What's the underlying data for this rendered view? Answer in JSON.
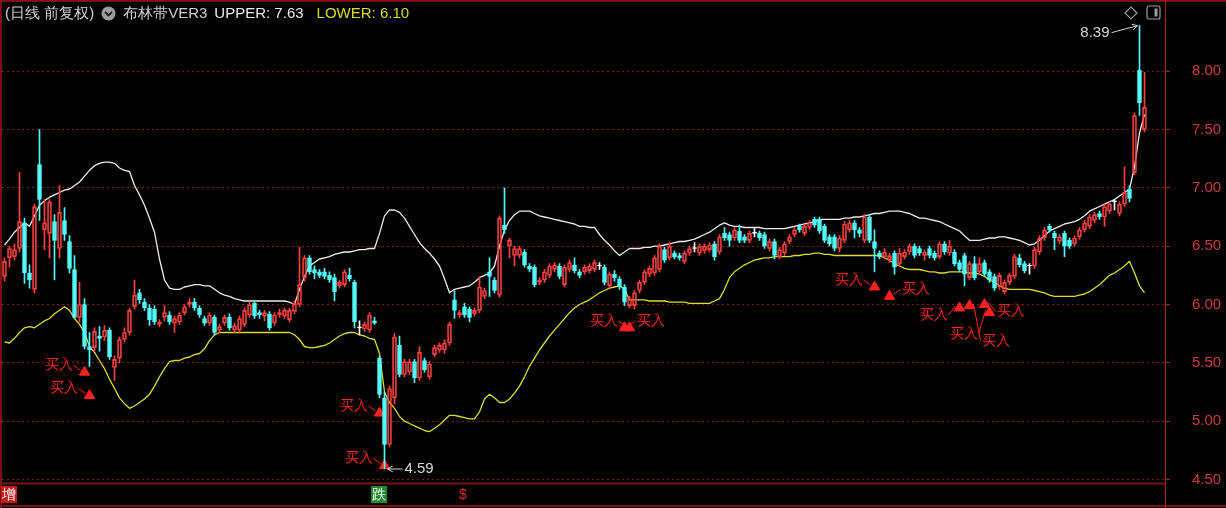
{
  "chart_data": {
    "type": "candlestick",
    "title": "(日线 前复权)",
    "subtitle": "布林带VER3",
    "categories": [
      null,
      null,
      null,
      null,
      null,
      null,
      null,
      null,
      null,
      null,
      null,
      null,
      null,
      null,
      null,
      null,
      null,
      null,
      null,
      null,
      null,
      null,
      null,
      null,
      null,
      null,
      null,
      null,
      null,
      null,
      null,
      null,
      null,
      null,
      null,
      null,
      null,
      null,
      null,
      null,
      null,
      null,
      null,
      null,
      null,
      null,
      null,
      null,
      null,
      null,
      null,
      null,
      null,
      null,
      null,
      null,
      null,
      null,
      null,
      null,
      null,
      null,
      null,
      null,
      null,
      null,
      null,
      null,
      null,
      null,
      null,
      null,
      null,
      null,
      null,
      null,
      null,
      null,
      null,
      null,
      null,
      null,
      null,
      null,
      null,
      null,
      null,
      null,
      null,
      null,
      null,
      null,
      null,
      null,
      null,
      null,
      null,
      null,
      null,
      null,
      null,
      null,
      null,
      null,
      null,
      null,
      null,
      null,
      null,
      null,
      null,
      null,
      null,
      null,
      null,
      null,
      null,
      null,
      null,
      null,
      null,
      null,
      null,
      null,
      null,
      null,
      null,
      null,
      null,
      null,
      null,
      null,
      null,
      null,
      null,
      null,
      null,
      null,
      null,
      null,
      null,
      null,
      null,
      null,
      null,
      null,
      null,
      null,
      null,
      null,
      null,
      null,
      null,
      null,
      null,
      null,
      null,
      null,
      null,
      null,
      null,
      null,
      null,
      null,
      null,
      null,
      null,
      null,
      null,
      null,
      null,
      null,
      null,
      null,
      null,
      null,
      null,
      null,
      null,
      null,
      null,
      null,
      null,
      null,
      null,
      null,
      null,
      null,
      null,
      null,
      null,
      null,
      null,
      null,
      null,
      null,
      null,
      null,
      null,
      null,
      null,
      null,
      null,
      null,
      null,
      null,
      null,
      null,
      null,
      null,
      null,
      null,
      null,
      null,
      null,
      null,
      null,
      null,
      null,
      null,
      null,
      null,
      null,
      null,
      null,
      null,
      null,
      null,
      null
    ],
    "ohlc": [
      [
        6.24,
        6.4,
        6.2,
        6.37
      ],
      [
        6.4,
        6.5,
        6.32,
        6.48
      ],
      [
        6.41,
        6.52,
        6.38,
        6.47
      ],
      [
        6.48,
        7.13,
        6.45,
        6.71
      ],
      [
        6.7,
        6.74,
        6.18,
        6.27
      ],
      [
        6.27,
        6.34,
        6.14,
        6.21
      ],
      [
        6.13,
        6.86,
        6.1,
        6.84
      ],
      [
        7.2,
        7.5,
        6.72,
        6.9
      ],
      [
        6.64,
        6.9,
        6.47,
        6.7
      ],
      [
        6.61,
        6.9,
        6.4,
        6.88
      ],
      [
        6.71,
        6.77,
        6.21,
        6.55
      ],
      [
        6.48,
        7.02,
        6.4,
        6.79
      ],
      [
        6.72,
        6.83,
        6.55,
        6.6
      ],
      [
        6.54,
        6.59,
        6.27,
        6.31
      ],
      [
        6.3,
        6.42,
        5.88,
        5.89
      ],
      [
        5.89,
        6.19,
        5.85,
        6.0
      ],
      [
        6.0,
        6.05,
        5.62,
        5.64
      ],
      [
        5.64,
        5.76,
        5.47,
        5.61
      ],
      [
        5.63,
        5.8,
        5.6,
        5.77
      ],
      [
        5.73,
        5.81,
        5.6,
        5.71
      ],
      [
        5.72,
        5.82,
        5.69,
        5.78
      ],
      [
        5.78,
        5.8,
        5.53,
        5.55
      ],
      [
        5.46,
        5.56,
        5.35,
        5.53
      ],
      [
        5.54,
        5.72,
        5.5,
        5.7
      ],
      [
        5.7,
        5.8,
        5.68,
        5.76
      ],
      [
        5.76,
        5.97,
        5.74,
        5.95
      ],
      [
        5.98,
        6.21,
        5.96,
        6.08
      ],
      [
        6.1,
        6.13,
        6.01,
        6.04
      ],
      [
        6.02,
        6.05,
        5.95,
        5.97
      ],
      [
        5.97,
        6.0,
        5.82,
        5.87
      ],
      [
        5.96,
        5.99,
        5.83,
        5.85
      ],
      [
        5.83,
        5.87,
        5.81,
        5.85
      ],
      [
        5.89,
        5.99,
        5.86,
        5.93
      ],
      [
        5.91,
        5.94,
        5.83,
        5.85
      ],
      [
        5.84,
        5.9,
        5.76,
        5.88
      ],
      [
        5.85,
        5.93,
        5.83,
        5.91
      ],
      [
        5.93,
        6.0,
        5.91,
        5.98
      ],
      [
        6.0,
        6.05,
        5.98,
        6.02
      ],
      [
        6.02,
        6.05,
        5.95,
        5.97
      ],
      [
        5.97,
        5.99,
        5.89,
        5.91
      ],
      [
        5.88,
        5.9,
        5.82,
        5.84
      ],
      [
        5.84,
        5.93,
        5.82,
        5.91
      ],
      [
        5.89,
        5.91,
        5.74,
        5.76
      ],
      [
        5.78,
        5.83,
        5.76,
        5.81
      ],
      [
        5.84,
        5.91,
        5.82,
        5.89
      ],
      [
        5.89,
        5.92,
        5.78,
        5.8
      ],
      [
        5.78,
        5.84,
        5.76,
        5.82
      ],
      [
        5.78,
        5.9,
        5.76,
        5.88
      ],
      [
        5.83,
        5.97,
        5.81,
        5.95
      ],
      [
        5.91,
        6.02,
        5.89,
        6.0
      ],
      [
        6.01,
        6.03,
        5.88,
        5.9
      ],
      [
        5.93,
        5.95,
        5.88,
        5.91
      ],
      [
        5.9,
        5.95,
        5.86,
        5.93
      ],
      [
        5.92,
        5.94,
        5.78,
        5.8
      ],
      [
        5.84,
        5.93,
        5.82,
        5.91
      ],
      [
        5.91,
        5.96,
        5.89,
        5.93
      ],
      [
        5.9,
        5.97,
        5.88,
        5.95
      ],
      [
        5.87,
        5.97,
        5.85,
        5.95
      ],
      [
        5.94,
        6.03,
        5.92,
        6.01
      ],
      [
        6.0,
        6.49,
        5.98,
        6.17
      ],
      [
        6.23,
        6.42,
        6.2,
        6.4
      ],
      [
        6.4,
        6.42,
        6.26,
        6.28
      ],
      [
        6.3,
        6.33,
        6.22,
        6.27
      ],
      [
        6.28,
        6.3,
        6.23,
        6.25
      ],
      [
        6.28,
        6.31,
        6.22,
        6.24
      ],
      [
        6.25,
        6.28,
        6.19,
        6.21
      ],
      [
        6.23,
        6.26,
        6.03,
        6.11
      ],
      [
        6.16,
        6.21,
        6.14,
        6.19
      ],
      [
        6.17,
        6.3,
        6.15,
        6.28
      ],
      [
        6.25,
        6.31,
        6.2,
        6.22
      ],
      [
        6.19,
        6.21,
        5.8,
        5.85
      ],
      [
        5.8,
        5.86,
        5.74,
        5.8
      ],
      [
        5.79,
        5.85,
        5.77,
        5.83
      ],
      [
        5.78,
        5.93,
        5.76,
        5.91
      ],
      [
        5.86,
        5.89,
        5.83,
        5.84
      ],
      [
        5.54,
        5.56,
        5.2,
        5.23
      ],
      [
        5.2,
        5.25,
        4.59,
        4.8
      ],
      [
        4.8,
        5.3,
        4.78,
        5.28
      ],
      [
        5.2,
        5.75,
        5.15,
        5.72
      ],
      [
        5.65,
        5.73,
        5.38,
        5.4
      ],
      [
        5.4,
        5.53,
        5.38,
        5.51
      ],
      [
        5.42,
        5.53,
        5.4,
        5.51
      ],
      [
        5.51,
        5.53,
        5.33,
        5.37
      ],
      [
        5.37,
        5.64,
        5.35,
        5.59
      ],
      [
        5.52,
        5.54,
        5.42,
        5.44
      ],
      [
        5.38,
        5.51,
        5.36,
        5.49
      ],
      [
        5.57,
        5.65,
        5.55,
        5.63
      ],
      [
        5.61,
        5.67,
        5.59,
        5.65
      ],
      [
        5.61,
        5.7,
        5.58,
        5.67
      ],
      [
        5.67,
        5.85,
        5.65,
        5.83
      ],
      [
        6.04,
        6.12,
        5.88,
        5.95
      ],
      [
        5.91,
        5.95,
        5.89,
        5.93
      ],
      [
        5.98,
        6.01,
        5.89,
        5.91
      ],
      [
        5.96,
        5.98,
        5.85,
        5.89
      ],
      [
        5.92,
        5.97,
        5.9,
        5.95
      ],
      [
        5.95,
        6.24,
        5.93,
        6.15
      ],
      [
        6.07,
        6.14,
        6.05,
        6.12
      ],
      [
        6.28,
        6.4,
        6.07,
        6.24
      ],
      [
        6.21,
        6.23,
        6.1,
        6.12
      ],
      [
        6.08,
        6.76,
        6.06,
        6.74
      ],
      [
        6.68,
        7.0,
        6.61,
        6.64
      ],
      [
        6.5,
        6.57,
        6.4,
        6.55
      ],
      [
        6.42,
        6.5,
        6.33,
        6.48
      ],
      [
        6.42,
        6.5,
        6.4,
        6.48
      ],
      [
        6.45,
        6.47,
        6.32,
        6.34
      ],
      [
        6.33,
        6.35,
        6.28,
        6.3
      ],
      [
        6.32,
        6.34,
        6.15,
        6.17
      ],
      [
        6.19,
        6.23,
        6.17,
        6.21
      ],
      [
        6.21,
        6.3,
        6.19,
        6.28
      ],
      [
        6.25,
        6.35,
        6.23,
        6.33
      ],
      [
        6.3,
        6.36,
        6.28,
        6.34
      ],
      [
        6.33,
        6.35,
        6.22,
        6.24
      ],
      [
        6.17,
        6.34,
        6.15,
        6.32
      ],
      [
        6.3,
        6.38,
        6.28,
        6.36
      ],
      [
        6.34,
        6.4,
        6.27,
        6.29
      ],
      [
        6.28,
        6.3,
        6.23,
        6.25
      ],
      [
        6.28,
        6.34,
        6.26,
        6.32
      ],
      [
        6.29,
        6.35,
        6.27,
        6.33
      ],
      [
        6.3,
        6.38,
        6.28,
        6.36
      ],
      [
        6.33,
        6.36,
        6.3,
        6.33
      ],
      [
        6.32,
        6.34,
        6.17,
        6.19
      ],
      [
        6.16,
        6.28,
        6.14,
        6.26
      ],
      [
        6.26,
        6.29,
        6.2,
        6.23
      ],
      [
        6.22,
        6.24,
        6.13,
        6.15
      ],
      [
        6.15,
        6.17,
        5.99,
        6.02
      ],
      [
        5.99,
        6.07,
        5.97,
        6.05
      ],
      [
        5.99,
        6.12,
        5.96,
        6.1
      ],
      [
        6.12,
        6.21,
        6.1,
        6.19
      ],
      [
        6.19,
        6.3,
        6.17,
        6.28
      ],
      [
        6.26,
        6.33,
        6.24,
        6.31
      ],
      [
        6.27,
        6.42,
        6.25,
        6.4
      ],
      [
        6.3,
        6.52,
        6.28,
        6.5
      ],
      [
        6.47,
        6.49,
        6.36,
        6.38
      ],
      [
        6.4,
        6.53,
        6.38,
        6.5
      ],
      [
        6.44,
        6.46,
        6.39,
        6.41
      ],
      [
        6.42,
        6.44,
        6.38,
        6.4
      ],
      [
        6.37,
        6.46,
        6.35,
        6.44
      ],
      [
        6.44,
        6.5,
        6.42,
        6.48
      ],
      [
        6.48,
        6.53,
        6.45,
        6.48
      ],
      [
        6.44,
        6.52,
        6.42,
        6.5
      ],
      [
        6.46,
        6.52,
        6.44,
        6.5
      ],
      [
        6.47,
        6.53,
        6.45,
        6.51
      ],
      [
        6.52,
        6.54,
        6.38,
        6.41
      ],
      [
        6.45,
        6.6,
        6.43,
        6.58
      ],
      [
        6.61,
        6.66,
        6.55,
        6.57
      ],
      [
        6.6,
        6.62,
        6.5,
        6.55
      ],
      [
        6.57,
        6.66,
        6.55,
        6.64
      ],
      [
        6.63,
        6.68,
        6.53,
        6.55
      ],
      [
        6.58,
        6.6,
        6.53,
        6.55
      ],
      [
        6.55,
        6.63,
        6.53,
        6.61
      ],
      [
        6.61,
        6.65,
        6.58,
        6.61
      ],
      [
        6.61,
        6.63,
        6.55,
        6.57
      ],
      [
        6.6,
        6.62,
        6.48,
        6.5
      ],
      [
        6.48,
        6.56,
        6.46,
        6.54
      ],
      [
        6.54,
        6.56,
        6.39,
        6.42
      ],
      [
        6.41,
        6.49,
        6.39,
        6.47
      ],
      [
        6.44,
        6.54,
        6.42,
        6.52
      ],
      [
        6.54,
        6.6,
        6.52,
        6.58
      ],
      [
        6.6,
        6.66,
        6.58,
        6.64
      ],
      [
        6.67,
        6.69,
        6.62,
        6.64
      ],
      [
        6.61,
        6.69,
        6.59,
        6.67
      ],
      [
        6.66,
        6.72,
        6.64,
        6.7
      ],
      [
        6.73,
        6.75,
        6.66,
        6.68
      ],
      [
        6.73,
        6.75,
        6.61,
        6.63
      ],
      [
        6.67,
        6.69,
        6.53,
        6.55
      ],
      [
        6.58,
        6.6,
        6.5,
        6.52
      ],
      [
        6.58,
        6.6,
        6.46,
        6.48
      ],
      [
        6.48,
        6.59,
        6.45,
        6.57
      ],
      [
        6.55,
        6.71,
        6.53,
        6.69
      ],
      [
        6.64,
        6.72,
        6.62,
        6.7
      ],
      [
        6.7,
        6.72,
        6.57,
        6.64
      ],
      [
        6.64,
        6.66,
        6.58,
        6.61
      ],
      [
        6.55,
        6.77,
        6.53,
        6.75
      ],
      [
        6.75,
        6.77,
        6.53,
        6.55
      ],
      [
        6.54,
        6.64,
        6.28,
        6.48
      ],
      [
        6.44,
        6.46,
        6.39,
        6.41
      ],
      [
        6.41,
        6.48,
        6.39,
        6.45
      ],
      [
        6.38,
        6.44,
        6.36,
        6.42
      ],
      [
        6.44,
        6.46,
        6.26,
        6.32
      ],
      [
        6.35,
        6.48,
        6.33,
        6.44
      ],
      [
        6.41,
        6.47,
        6.39,
        6.45
      ],
      [
        6.45,
        6.52,
        6.43,
        6.5
      ],
      [
        6.5,
        6.52,
        6.4,
        6.42
      ],
      [
        6.48,
        6.5,
        6.42,
        6.44
      ],
      [
        6.42,
        6.47,
        6.38,
        6.45
      ],
      [
        6.48,
        6.5,
        6.4,
        6.42
      ],
      [
        6.44,
        6.46,
        6.38,
        6.4
      ],
      [
        6.41,
        6.54,
        6.39,
        6.52
      ],
      [
        6.52,
        6.54,
        6.43,
        6.45
      ],
      [
        6.44,
        6.55,
        6.42,
        6.5
      ],
      [
        6.45,
        6.47,
        6.33,
        6.35
      ],
      [
        6.36,
        6.38,
        6.28,
        6.3
      ],
      [
        6.42,
        6.44,
        6.16,
        6.26
      ],
      [
        6.23,
        6.37,
        6.21,
        6.35
      ],
      [
        6.35,
        6.41,
        6.21,
        6.23
      ],
      [
        6.28,
        6.4,
        6.26,
        6.35
      ],
      [
        6.36,
        6.38,
        6.24,
        6.26
      ],
      [
        6.28,
        6.3,
        6.19,
        6.21
      ],
      [
        6.24,
        6.26,
        6.12,
        6.14
      ],
      [
        6.15,
        6.27,
        6.13,
        6.25
      ],
      [
        6.11,
        6.21,
        6.09,
        6.19
      ],
      [
        6.19,
        6.27,
        6.17,
        6.25
      ],
      [
        6.24,
        6.43,
        6.22,
        6.41
      ],
      [
        6.4,
        6.43,
        6.32,
        6.34
      ],
      [
        6.35,
        6.37,
        6.27,
        6.29
      ],
      [
        6.33,
        6.35,
        6.26,
        6.33
      ],
      [
        6.33,
        6.49,
        6.31,
        6.47
      ],
      [
        6.45,
        6.59,
        6.43,
        6.57
      ],
      [
        6.57,
        6.66,
        6.55,
        6.64
      ],
      [
        6.67,
        6.69,
        6.62,
        6.64
      ],
      [
        6.61,
        6.63,
        6.47,
        6.57
      ],
      [
        6.54,
        6.6,
        6.52,
        6.58
      ],
      [
        6.61,
        6.63,
        6.41,
        6.5
      ],
      [
        6.55,
        6.57,
        6.48,
        6.5
      ],
      [
        6.52,
        6.59,
        6.5,
        6.57
      ],
      [
        6.58,
        6.66,
        6.56,
        6.64
      ],
      [
        6.64,
        6.72,
        6.62,
        6.7
      ],
      [
        6.67,
        6.77,
        6.65,
        6.75
      ],
      [
        6.72,
        6.79,
        6.7,
        6.77
      ],
      [
        6.78,
        6.8,
        6.73,
        6.75
      ],
      [
        6.75,
        6.86,
        6.67,
        6.84
      ],
      [
        6.8,
        6.88,
        6.78,
        6.86
      ],
      [
        6.88,
        6.9,
        6.81,
        6.88
      ],
      [
        6.78,
        6.88,
        6.76,
        6.86
      ],
      [
        6.86,
        7.18,
        6.84,
        6.96
      ],
      [
        6.99,
        7.02,
        6.88,
        6.91
      ],
      [
        7.13,
        7.64,
        7.11,
        7.62
      ],
      [
        8.01,
        8.39,
        7.62,
        7.73
      ],
      [
        7.5,
        7.99,
        7.48,
        7.69
      ]
    ],
    "colors": [
      "#ff4040",
      "#ff4040",
      "#ff4040",
      "#ff4040",
      "#54fcfc",
      "#54fcfc",
      "#ff4040",
      "#54fcfc",
      "#ff4040",
      "#ff4040",
      "#54fcfc",
      "#ff4040",
      "#54fcfc",
      "#54fcfc",
      "#54fcfc",
      "#ff4040",
      "#54fcfc",
      "#54fcfc",
      "#ff4040",
      "#54fcfc",
      "#ff4040",
      "#54fcfc",
      "#ff4040",
      "#ff4040",
      "#ff4040",
      "#ff4040",
      "#ff4040",
      "#54fcfc",
      "#54fcfc",
      "#54fcfc",
      "#54fcfc",
      "#ff4040",
      "#ff4040",
      "#54fcfc",
      "#ff4040",
      "#ff4040",
      "#ff4040",
      "#ff4040",
      "#54fcfc",
      "#54fcfc",
      "#54fcfc",
      "#ff4040",
      "#54fcfc",
      "#ff4040",
      "#ff4040",
      "#54fcfc",
      "#ff4040",
      "#ff4040",
      "#ff4040",
      "#ff4040",
      "#54fcfc",
      "#54fcfc",
      "#ff4040",
      "#54fcfc",
      "#ff4040",
      "#ff4040",
      "#ff4040",
      "#ff4040",
      "#ff4040",
      "#ff4040",
      "#ff4040",
      "#54fcfc",
      "#54fcfc",
      "#54fcfc",
      "#54fcfc",
      "#54fcfc",
      "#54fcfc",
      "#ff4040",
      "#ff4040",
      "#54fcfc",
      "#54fcfc",
      "#ffffff",
      "#ff4040",
      "#ff4040",
      "#54fcfc",
      "#54fcfc",
      "#54fcfc",
      "#ff4040",
      "#ff4040",
      "#54fcfc",
      "#ff4040",
      "#ff4040",
      "#54fcfc",
      "#ff4040",
      "#54fcfc",
      "#ff4040",
      "#ff4040",
      "#ff4040",
      "#ff4040",
      "#ff4040",
      "#54fcfc",
      "#ff4040",
      "#54fcfc",
      "#54fcfc",
      "#ff4040",
      "#ff4040",
      "#ff4040",
      "#54fcfc",
      "#54fcfc",
      "#ff4040",
      "#54fcfc",
      "#ff4040",
      "#ff4040",
      "#ff4040",
      "#54fcfc",
      "#54fcfc",
      "#54fcfc",
      "#ff4040",
      "#ff4040",
      "#ff4040",
      "#ff4040",
      "#54fcfc",
      "#ff4040",
      "#ff4040",
      "#54fcfc",
      "#54fcfc",
      "#ff4040",
      "#ff4040",
      "#ff4040",
      "#ffffff",
      "#54fcfc",
      "#ff4040",
      "#54fcfc",
      "#54fcfc",
      "#54fcfc",
      "#ff4040",
      "#ff4040",
      "#ff4040",
      "#ff4040",
      "#ff4040",
      "#ff4040",
      "#ff4040",
      "#54fcfc",
      "#ff4040",
      "#54fcfc",
      "#54fcfc",
      "#ff4040",
      "#ff4040",
      "#ffffff",
      "#ff4040",
      "#ff4040",
      "#ff4040",
      "#54fcfc",
      "#ff4040",
      "#54fcfc",
      "#54fcfc",
      "#ff4040",
      "#54fcfc",
      "#54fcfc",
      "#ff4040",
      "#ffffff",
      "#54fcfc",
      "#54fcfc",
      "#ff4040",
      "#54fcfc",
      "#ff4040",
      "#ff4040",
      "#ff4040",
      "#ff4040",
      "#54fcfc",
      "#ff4040",
      "#ff4040",
      "#54fcfc",
      "#54fcfc",
      "#54fcfc",
      "#54fcfc",
      "#54fcfc",
      "#ff4040",
      "#ff4040",
      "#ff4040",
      "#54fcfc",
      "#54fcfc",
      "#ff4040",
      "#54fcfc",
      "#54fcfc",
      "#54fcfc",
      "#ff4040",
      "#ff4040",
      "#54fcfc",
      "#ff4040",
      "#ff4040",
      "#ff4040",
      "#54fcfc",
      "#54fcfc",
      "#ff4040",
      "#54fcfc",
      "#54fcfc",
      "#ff4040",
      "#54fcfc",
      "#ff4040",
      "#54fcfc",
      "#54fcfc",
      "#54fcfc",
      "#ff4040",
      "#54fcfc",
      "#ff4040",
      "#54fcfc",
      "#54fcfc",
      "#54fcfc",
      "#ff4040",
      "#ff4040",
      "#ff4040",
      "#ff4040",
      "#54fcfc",
      "#54fcfc",
      "#ffffff",
      "#ff4040",
      "#ff4040",
      "#ff4040",
      "#54fcfc",
      "#54fcfc",
      "#ff4040",
      "#54fcfc",
      "#54fcfc",
      "#ff4040",
      "#ff4040",
      "#ff4040",
      "#ff4040",
      "#ff4040",
      "#54fcfc",
      "#ff4040",
      "#ff4040",
      "#ffffff",
      "#ff4040",
      "#ff4040",
      "#54fcfc",
      "#ff4040",
      "#54fcfc",
      "#ff4040"
    ],
    "series": [
      {
        "name": "UPPER: 7.63",
        "type": "line",
        "color": "#ececec",
        "values": [
          6.51,
          6.56,
          6.62,
          6.66,
          6.7,
          6.67,
          6.76,
          6.85,
          6.89,
          6.92,
          6.94,
          6.96,
          6.98,
          6.99,
          7.02,
          7.05,
          7.1,
          7.15,
          7.19,
          7.21,
          7.22,
          7.22,
          7.21,
          7.17,
          7.15,
          7.14,
          7.02,
          6.94,
          6.85,
          6.74,
          6.62,
          6.39,
          6.21,
          6.14,
          6.13,
          6.13,
          6.15,
          6.16,
          6.17,
          6.17,
          6.16,
          6.16,
          6.13,
          6.1,
          6.08,
          6.07,
          6.05,
          6.04,
          6.03,
          6.03,
          6.03,
          6.03,
          6.03,
          6.03,
          6.03,
          6.03,
          6.03,
          6.02,
          6.0,
          6.13,
          6.24,
          6.33,
          6.36,
          6.39,
          6.4,
          6.41,
          6.43,
          6.44,
          6.45,
          6.45,
          6.46,
          6.47,
          6.47,
          6.48,
          6.48,
          6.61,
          6.76,
          6.81,
          6.81,
          6.79,
          6.74,
          6.67,
          6.6,
          6.53,
          6.48,
          6.44,
          6.39,
          6.33,
          6.22,
          6.1,
          6.13,
          6.14,
          6.15,
          6.16,
          6.19,
          6.23,
          6.25,
          6.27,
          6.33,
          6.5,
          6.64,
          6.72,
          6.77,
          6.8,
          6.8,
          6.8,
          6.78,
          6.76,
          6.75,
          6.74,
          6.73,
          6.72,
          6.71,
          6.7,
          6.69,
          6.67,
          6.67,
          6.66,
          6.66,
          6.6,
          6.55,
          6.51,
          6.46,
          6.42,
          6.45,
          6.48,
          6.48,
          6.48,
          6.49,
          6.49,
          6.5,
          6.5,
          6.51,
          6.52,
          6.53,
          6.54,
          6.54,
          6.55,
          6.56,
          6.58,
          6.6,
          6.62,
          6.65,
          6.68,
          6.7,
          6.68,
          6.67,
          6.67,
          6.66,
          6.66,
          6.66,
          6.66,
          6.65,
          6.65,
          6.65,
          6.65,
          6.65,
          6.66,
          6.67,
          6.68,
          6.69,
          6.7,
          6.71,
          6.73,
          6.73,
          6.73,
          6.73,
          6.73,
          6.74,
          6.74,
          6.75,
          6.75,
          6.76,
          6.77,
          6.78,
          6.78,
          6.79,
          6.8,
          6.8,
          6.8,
          6.79,
          6.78,
          6.76,
          6.74,
          6.74,
          6.73,
          6.72,
          6.71,
          6.69,
          6.67,
          6.65,
          6.63,
          6.59,
          6.55,
          6.55,
          6.55,
          6.56,
          6.57,
          6.57,
          6.58,
          6.58,
          6.57,
          6.56,
          6.55,
          6.53,
          6.51,
          6.52,
          6.55,
          6.59,
          6.63,
          6.65,
          6.67,
          6.69,
          6.7,
          6.71,
          6.73,
          6.76,
          6.8,
          6.82,
          6.84,
          6.86,
          6.88,
          6.9,
          6.93,
          6.96,
          6.99,
          7.18,
          7.47,
          7.63
        ]
      },
      {
        "name": "LOWER: 6.10",
        "type": "line",
        "color": "#dcdc28",
        "values": [
          5.68,
          5.67,
          5.71,
          5.76,
          5.8,
          5.81,
          5.8,
          5.83,
          5.86,
          5.88,
          5.92,
          5.95,
          5.98,
          5.95,
          5.88,
          5.83,
          5.76,
          5.64,
          5.59,
          5.52,
          5.45,
          5.36,
          5.28,
          5.2,
          5.15,
          5.11,
          5.13,
          5.16,
          5.19,
          5.23,
          5.3,
          5.38,
          5.45,
          5.51,
          5.52,
          5.52,
          5.54,
          5.55,
          5.57,
          5.58,
          5.62,
          5.69,
          5.74,
          5.76,
          5.76,
          5.76,
          5.76,
          5.76,
          5.76,
          5.76,
          5.76,
          5.76,
          5.76,
          5.76,
          5.76,
          5.76,
          5.76,
          5.76,
          5.74,
          5.7,
          5.64,
          5.63,
          5.63,
          5.64,
          5.65,
          5.67,
          5.7,
          5.73,
          5.75,
          5.76,
          5.76,
          5.74,
          5.73,
          5.71,
          5.7,
          5.58,
          5.25,
          5.16,
          5.11,
          5.04,
          5.0,
          4.98,
          4.96,
          4.94,
          4.92,
          4.91,
          4.94,
          4.97,
          5.01,
          5.05,
          5.05,
          5.04,
          5.03,
          5.02,
          5.02,
          5.08,
          5.19,
          5.23,
          5.2,
          5.16,
          5.16,
          5.19,
          5.24,
          5.3,
          5.38,
          5.47,
          5.54,
          5.61,
          5.67,
          5.73,
          5.78,
          5.83,
          5.88,
          5.93,
          5.97,
          6.0,
          6.02,
          6.04,
          6.07,
          6.1,
          6.12,
          6.14,
          6.15,
          6.16,
          6.13,
          6.04,
          6.04,
          6.04,
          6.04,
          6.03,
          6.03,
          6.03,
          6.03,
          6.02,
          6.02,
          6.02,
          6.02,
          6.01,
          6.01,
          6.01,
          6.01,
          6.01,
          6.03,
          6.05,
          6.13,
          6.23,
          6.28,
          6.31,
          6.34,
          6.36,
          6.38,
          6.39,
          6.4,
          6.4,
          6.41,
          6.41,
          6.41,
          6.41,
          6.42,
          6.42,
          6.43,
          6.43,
          6.44,
          6.44,
          6.43,
          6.43,
          6.42,
          6.42,
          6.42,
          6.42,
          6.42,
          6.42,
          6.42,
          6.42,
          6.42,
          6.42,
          6.4,
          6.38,
          6.35,
          6.33,
          6.31,
          6.3,
          6.3,
          6.3,
          6.29,
          6.28,
          6.28,
          6.27,
          6.27,
          6.28,
          6.28,
          6.28,
          6.28,
          6.27,
          6.27,
          6.26,
          6.24,
          6.21,
          6.19,
          6.16,
          6.14,
          6.13,
          6.13,
          6.13,
          6.13,
          6.13,
          6.12,
          6.11,
          6.1,
          6.08,
          6.07,
          6.07,
          6.07,
          6.07,
          6.07,
          6.08,
          6.09,
          6.11,
          6.14,
          6.17,
          6.21,
          6.25,
          6.27,
          6.3,
          6.33,
          6.37,
          6.27,
          6.16,
          6.1
        ]
      },
      {
        "type": "scatter",
        "color": "#ff2020",
        "marker": "triangle",
        "values": [
          null,
          null,
          null,
          null,
          null,
          null,
          null,
          null,
          null,
          null,
          null,
          null,
          null,
          null,
          null,
          null,
          5.42,
          5.22,
          null,
          null,
          null,
          null,
          null,
          null,
          null,
          null,
          null,
          null,
          null,
          null,
          null,
          null,
          null,
          null,
          null,
          null,
          null,
          null,
          null,
          null,
          null,
          null,
          null,
          null,
          null,
          null,
          null,
          null,
          null,
          null,
          null,
          null,
          null,
          null,
          null,
          null,
          null,
          null,
          null,
          null,
          null,
          null,
          null,
          null,
          null,
          null,
          null,
          null,
          null,
          null,
          null,
          null,
          null,
          null,
          null,
          5.07,
          4.62,
          null,
          null,
          null,
          null,
          null,
          null,
          null,
          null,
          null,
          null,
          null,
          null,
          null,
          null,
          null,
          null,
          null,
          null,
          null,
          null,
          null,
          null,
          null,
          null,
          null,
          null,
          null,
          null,
          null,
          null,
          null,
          null,
          null,
          null,
          null,
          null,
          null,
          null,
          null,
          null,
          null,
          null,
          null,
          null,
          null,
          null,
          null,
          5.8,
          5.8,
          null,
          null,
          null,
          null,
          null,
          null,
          null,
          null,
          null,
          null,
          null,
          null,
          null,
          null,
          null,
          null,
          null,
          null,
          null,
          null,
          null,
          null,
          null,
          null,
          null,
          null,
          null,
          null,
          null,
          null,
          null,
          null,
          null,
          null,
          null,
          null,
          null,
          null,
          null,
          null,
          null,
          null,
          null,
          null,
          null,
          null,
          null,
          null,
          6.15,
          null,
          null,
          6.07,
          null,
          null,
          null,
          null,
          null,
          null,
          null,
          null,
          null,
          null,
          null,
          null,
          null,
          5.97,
          null,
          5.99,
          null,
          null,
          6.0,
          5.93,
          null,
          null,
          null,
          null,
          null,
          null,
          null,
          null,
          null,
          null,
          null,
          null,
          null,
          null,
          null,
          null,
          null,
          null,
          null,
          null,
          null,
          null,
          null,
          null,
          null,
          null,
          null,
          null,
          null,
          null,
          null
        ],
        "value_labels": [
          null,
          null,
          null,
          null,
          null,
          null,
          null,
          null,
          null,
          null,
          null,
          null,
          null,
          null,
          null,
          null,
          "买入",
          "买入",
          null,
          null,
          null,
          null,
          null,
          null,
          null,
          null,
          null,
          null,
          null,
          null,
          null,
          null,
          null,
          null,
          null,
          null,
          null,
          null,
          null,
          null,
          null,
          null,
          null,
          null,
          null,
          null,
          null,
          null,
          null,
          null,
          null,
          null,
          null,
          null,
          null,
          null,
          null,
          null,
          null,
          null,
          null,
          null,
          null,
          null,
          null,
          null,
          null,
          null,
          null,
          null,
          null,
          null,
          null,
          null,
          null,
          "买入",
          "买入",
          null,
          null,
          null,
          null,
          null,
          null,
          null,
          null,
          null,
          null,
          null,
          null,
          null,
          null,
          null,
          null,
          null,
          null,
          null,
          null,
          null,
          null,
          null,
          null,
          null,
          null,
          null,
          null,
          null,
          null,
          null,
          null,
          null,
          null,
          null,
          null,
          null,
          null,
          null,
          null,
          null,
          null,
          null,
          null,
          null,
          null,
          null,
          "买入",
          "买入",
          null,
          null,
          null,
          null,
          null,
          null,
          null,
          null,
          null,
          null,
          null,
          null,
          null,
          null,
          null,
          null,
          null,
          null,
          null,
          null,
          null,
          null,
          null,
          null,
          null,
          null,
          null,
          null,
          null,
          null,
          null,
          null,
          null,
          null,
          null,
          null,
          null,
          null,
          null,
          null,
          null,
          null,
          null,
          null,
          null,
          null,
          null,
          null,
          "买入",
          null,
          null,
          "买入",
          null,
          null,
          null,
          null,
          null,
          null,
          null,
          null,
          null,
          null,
          null,
          null,
          null,
          "买入",
          null,
          "买入",
          null,
          null,
          "买入",
          "买入",
          null,
          null,
          null,
          null,
          null,
          null,
          null,
          null,
          null,
          null,
          null,
          null,
          null,
          null,
          null,
          null,
          null,
          null,
          null,
          null,
          null,
          null,
          null,
          null,
          null,
          null,
          null,
          null,
          null,
          null,
          null
        ]
      }
    ],
    "ylim": [
      4.47,
      8.61
    ],
    "yticks": [
      {
        "value": 4.5,
        "label": "4.50"
      },
      {
        "value": 5,
        "label": "5.00"
      },
      {
        "value": 5.5,
        "label": "5.50"
      },
      {
        "value": 6,
        "label": "6.00"
      },
      {
        "value": 6.5,
        "label": "6.50"
      },
      {
        "value": 7,
        "label": "7.00"
      },
      {
        "value": 7.5,
        "label": "7.50"
      },
      {
        "value": 8,
        "label": "8.00"
      }
    ],
    "grid": "y",
    "legend": "top left",
    "tick_labels": "y",
    "annotations": [
      "8.39",
      "4.59",
      "增",
      "跌",
      "$"
    ]
  }
}
